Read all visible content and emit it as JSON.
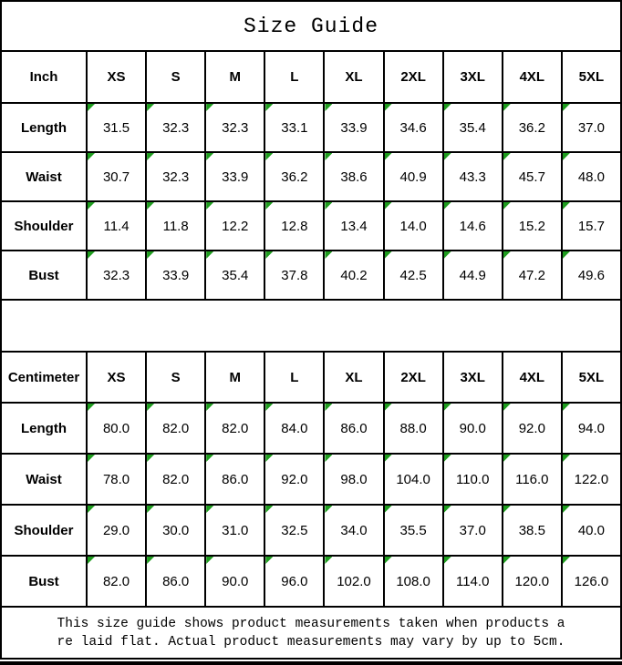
{
  "title": "Size Guide",
  "colors": {
    "border": "#000000",
    "flag_green": "#1f9d1f",
    "background": "#ffffff",
    "text": "#000000"
  },
  "chart_data": [
    {
      "type": "table",
      "unit_label": "Inch",
      "columns": [
        "Inch",
        "XS",
        "S",
        "M",
        "L",
        "XL",
        "2XL",
        "3XL",
        "4XL",
        "5XL"
      ],
      "rows": [
        {
          "label": "Length",
          "values": [
            "31.5",
            "32.3",
            "32.3",
            "33.1",
            "33.9",
            "34.6",
            "35.4",
            "36.2",
            "37.0"
          ]
        },
        {
          "label": "Waist",
          "values": [
            "30.7",
            "32.3",
            "33.9",
            "36.2",
            "38.6",
            "40.9",
            "43.3",
            "45.7",
            "48.0"
          ]
        },
        {
          "label": "Shoulder",
          "values": [
            "11.4",
            "11.8",
            "12.2",
            "12.8",
            "13.4",
            "14.0",
            "14.6",
            "15.2",
            "15.7"
          ]
        },
        {
          "label": "Bust",
          "values": [
            "32.3",
            "33.9",
            "35.4",
            "37.8",
            "40.2",
            "42.5",
            "44.9",
            "47.2",
            "49.6"
          ]
        }
      ]
    },
    {
      "type": "table",
      "unit_label": "Centimeter",
      "columns": [
        "Centimeter",
        "XS",
        "S",
        "M",
        "L",
        "XL",
        "2XL",
        "3XL",
        "4XL",
        "5XL"
      ],
      "rows": [
        {
          "label": "Length",
          "values": [
            "80.0",
            "82.0",
            "82.0",
            "84.0",
            "86.0",
            "88.0",
            "90.0",
            "92.0",
            "94.0"
          ]
        },
        {
          "label": "Waist",
          "values": [
            "78.0",
            "82.0",
            "86.0",
            "92.0",
            "98.0",
            "104.0",
            "110.0",
            "116.0",
            "122.0"
          ]
        },
        {
          "label": "Shoulder",
          "values": [
            "29.0",
            "30.0",
            "31.0",
            "32.5",
            "34.0",
            "35.5",
            "37.0",
            "38.5",
            "40.0"
          ]
        },
        {
          "label": "Bust",
          "values": [
            "82.0",
            "86.0",
            "90.0",
            "96.0",
            "102.0",
            "108.0",
            "114.0",
            "120.0",
            "126.0"
          ]
        }
      ]
    }
  ],
  "footer": {
    "line1": "This size guide shows product measurements taken when products a",
    "line2": "re laid flat. Actual product measurements may vary by up to 5cm."
  }
}
